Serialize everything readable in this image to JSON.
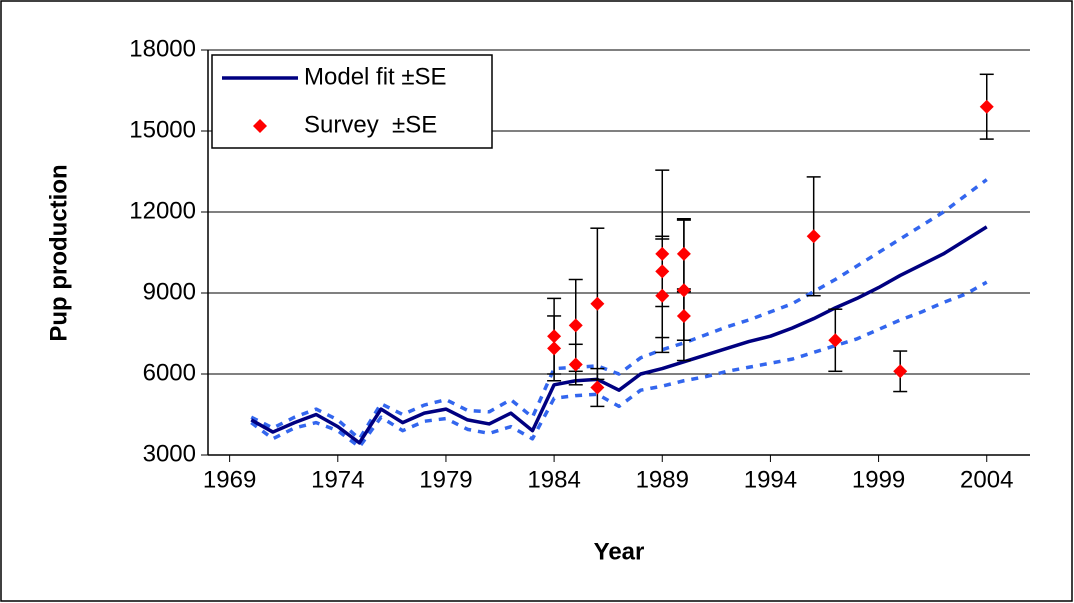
{
  "chart_data": {
    "type": "line",
    "x_label": "Year",
    "y_label": "Pup production",
    "xlim": [
      1968,
      2006
    ],
    "xticks": [
      1969,
      1974,
      1979,
      1984,
      1989,
      1994,
      1999,
      2004
    ],
    "ylim": [
      3000,
      18000
    ],
    "yticks": [
      3000,
      6000,
      9000,
      12000,
      15000,
      18000
    ],
    "grid": true,
    "legend": "upper left",
    "series": [
      {
        "name": "Model fit ±SE",
        "color": "#000080",
        "band_color": "#3366ee",
        "x": [
          1970,
          1971,
          1972,
          1973,
          1974,
          1975,
          1976,
          1977,
          1978,
          1979,
          1980,
          1981,
          1982,
          1983,
          1984,
          1985,
          1986,
          1987,
          1988,
          1989,
          1990,
          1991,
          1992,
          1993,
          1994,
          1995,
          1996,
          1997,
          1998,
          1999,
          2000,
          2001,
          2002,
          2003,
          2004
        ],
        "values": [
          4300,
          3850,
          4200,
          4500,
          4050,
          3450,
          4700,
          4200,
          4550,
          4700,
          4300,
          4150,
          4550,
          3900,
          5600,
          5750,
          5800,
          5400,
          6000,
          6200,
          6450,
          6700,
          6950,
          7200,
          7400,
          7700,
          8050,
          8450,
          8800,
          9200,
          9650,
          10050,
          10450,
          10950,
          11450
        ],
        "upper": [
          4400,
          4000,
          4400,
          4700,
          4300,
          3600,
          4900,
          4500,
          4850,
          5050,
          4650,
          4600,
          5050,
          4400,
          6200,
          6250,
          6300,
          6000,
          6600,
          6900,
          7150,
          7450,
          7750,
          8000,
          8300,
          8600,
          9050,
          9500,
          10000,
          10500,
          11000,
          11500,
          12000,
          12600,
          13200
        ],
        "lower": [
          4200,
          3600,
          4000,
          4200,
          3900,
          3300,
          4400,
          3900,
          4250,
          4350,
          3950,
          3800,
          4050,
          3600,
          5100,
          5200,
          5250,
          4800,
          5400,
          5550,
          5750,
          5900,
          6100,
          6250,
          6400,
          6550,
          6800,
          7050,
          7300,
          7650,
          8000,
          8300,
          8650,
          8950,
          9400
        ]
      },
      {
        "name": "Survey  ±SE",
        "color": "#ff0000",
        "type": "scatter",
        "x": [
          1984,
          1984,
          1985,
          1985,
          1986,
          1986,
          1989,
          1989,
          1989,
          1990,
          1990,
          1990,
          1996,
          1997,
          2000,
          2004
        ],
        "values": [
          7400,
          6950,
          7800,
          6350,
          8600,
          5500,
          10450,
          9800,
          8900,
          10450,
          9100,
          8150,
          11100,
          7250,
          6100,
          15900
        ],
        "errors": [
          1400,
          1200,
          1700,
          750,
          2800,
          700,
          3100,
          1300,
          2100,
          1300,
          2600,
          900,
          2200,
          1150,
          750,
          1200
        ]
      }
    ]
  }
}
